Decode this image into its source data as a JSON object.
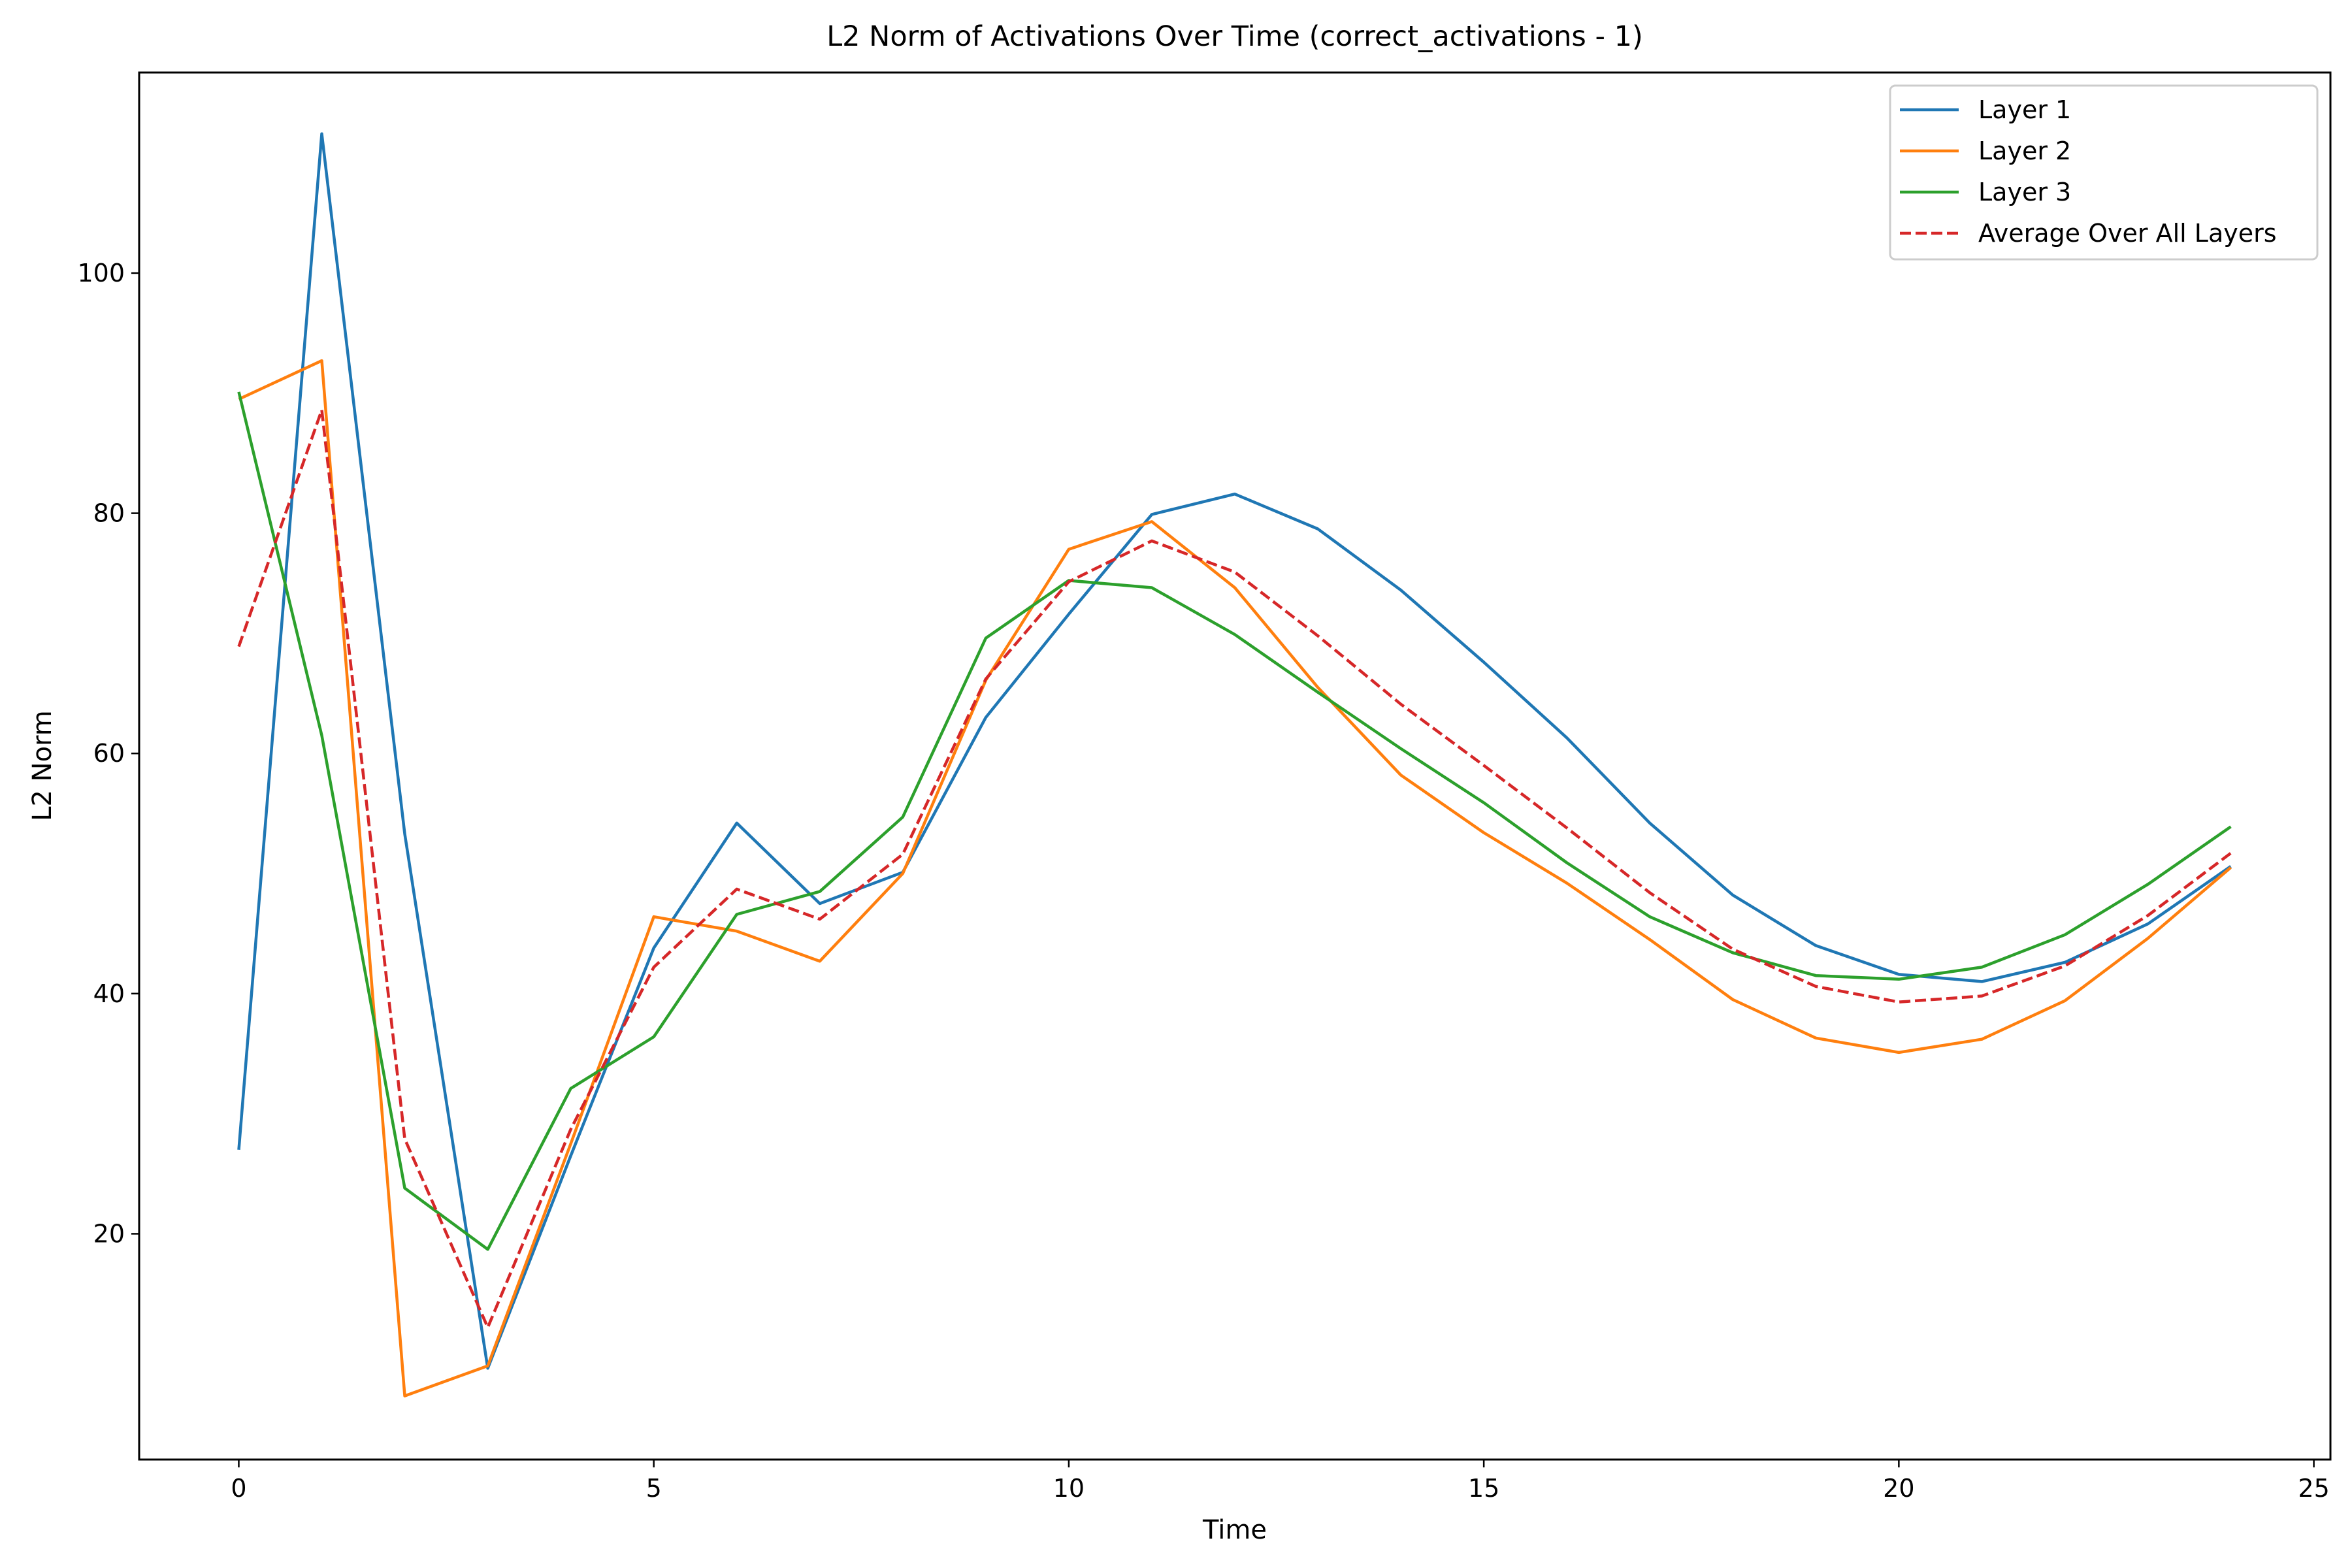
{
  "chart_data": {
    "type": "line",
    "title": "L2 Norm of Activations Over Time (correct_activations - 1)",
    "xlabel": "Time",
    "ylabel": "L2 Norm",
    "xlim": [
      -1.2,
      25.2
    ],
    "ylim": [
      1.2,
      116.7
    ],
    "xticks": [
      0,
      5,
      10,
      15,
      20,
      25
    ],
    "yticks": [
      20,
      40,
      60,
      80,
      100
    ],
    "grid": false,
    "legend_position": "top-right",
    "x": [
      0,
      1,
      2,
      3,
      4,
      5,
      6,
      7,
      8,
      9,
      10,
      11,
      12,
      13,
      14,
      15,
      16,
      17,
      18,
      19,
      20,
      21,
      22,
      23,
      24
    ],
    "series": [
      {
        "name": "Layer 1",
        "color": "#1f77b4",
        "style": "solid",
        "values": [
          27.0,
          111.6,
          53.3,
          8.8,
          26.5,
          43.8,
          54.2,
          47.5,
          50.1,
          63.0,
          71.6,
          79.9,
          81.6,
          78.7,
          73.6,
          67.6,
          61.3,
          54.2,
          48.2,
          44.0,
          41.6,
          41.0,
          42.6,
          45.8,
          50.6
        ]
      },
      {
        "name": "Layer 2",
        "color": "#ff7f0e",
        "style": "solid",
        "values": [
          89.5,
          92.7,
          6.5,
          9.0,
          27.5,
          46.4,
          45.2,
          42.7,
          50.0,
          66.1,
          77.0,
          79.3,
          73.8,
          65.5,
          58.2,
          53.4,
          49.2,
          44.5,
          39.5,
          36.3,
          35.1,
          36.2,
          39.4,
          44.6,
          50.5
        ]
      },
      {
        "name": "Layer 3",
        "color": "#2ca02c",
        "style": "solid",
        "values": [
          90.1,
          61.5,
          23.8,
          18.7,
          32.1,
          36.4,
          46.6,
          48.5,
          54.7,
          69.6,
          74.4,
          73.8,
          69.9,
          65.1,
          60.4,
          55.9,
          50.9,
          46.4,
          43.4,
          41.5,
          41.2,
          42.2,
          44.9,
          49.1,
          53.9
        ]
      },
      {
        "name": "Average Over All Layers",
        "color": "#d62728",
        "style": "dashed",
        "values": [
          68.9,
          88.6,
          27.9,
          12.2,
          28.7,
          42.2,
          48.7,
          46.2,
          51.6,
          66.2,
          74.3,
          77.7,
          75.1,
          69.8,
          64.1,
          59.0,
          53.8,
          48.4,
          43.7,
          40.6,
          39.3,
          39.8,
          42.3,
          46.5,
          51.7
        ]
      }
    ]
  }
}
